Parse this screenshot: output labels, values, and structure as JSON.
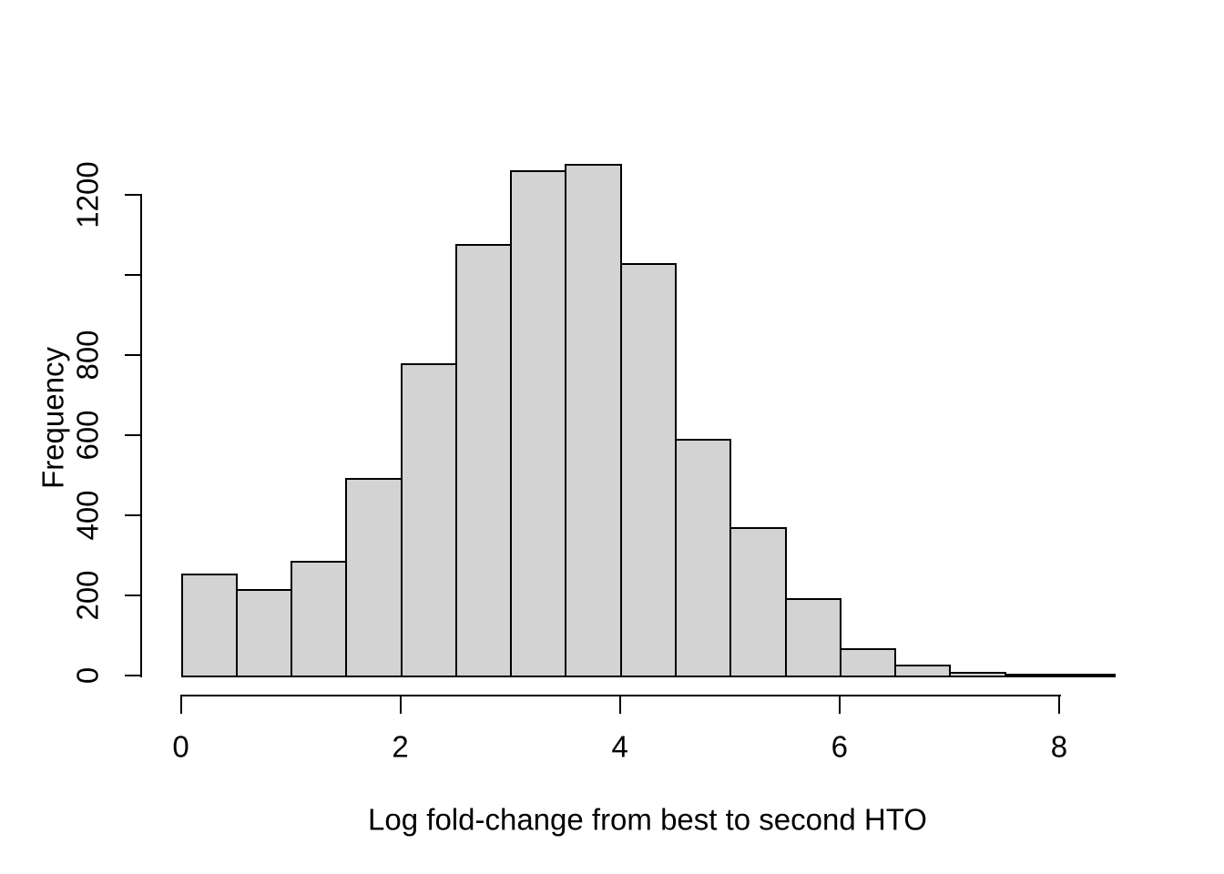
{
  "chart_data": {
    "type": "bar",
    "chart_kind": "histogram",
    "title": "",
    "xlabel": "Log fold-change from best to second HTO",
    "ylabel": "Frequency",
    "bin_start": 0,
    "bin_width": 0.5,
    "bin_edges": [
      0,
      0.5,
      1,
      1.5,
      2,
      2.5,
      3,
      3.5,
      4,
      4.5,
      5,
      5.5,
      6,
      6.5,
      7,
      7.5,
      8,
      8.5
    ],
    "values": [
      253,
      216,
      286,
      492,
      778,
      1076,
      1261,
      1276,
      1029,
      591,
      369,
      193,
      67,
      26,
      9,
      5,
      3
    ],
    "x_ticks": [
      {
        "value": 0,
        "label": "0"
      },
      {
        "value": 2,
        "label": "2"
      },
      {
        "value": 4,
        "label": "4"
      },
      {
        "value": 6,
        "label": "6"
      },
      {
        "value": 8,
        "label": "8"
      }
    ],
    "y_ticks": [
      {
        "value": 0,
        "label": "0"
      },
      {
        "value": 200,
        "label": "200"
      },
      {
        "value": 400,
        "label": "400"
      },
      {
        "value": 600,
        "label": "600"
      },
      {
        "value": 800,
        "label": "800"
      },
      {
        "value": 1000,
        "label": ""
      },
      {
        "value": 1200,
        "label": "1200"
      }
    ],
    "xlim": [
      0,
      8.5
    ],
    "ylim": [
      0,
      1280
    ],
    "grid": false,
    "legend": null,
    "colors": {
      "bar_fill": "#d3d3d3",
      "bar_border": "#000000",
      "axis": "#000000",
      "text": "#000000",
      "background": "#ffffff"
    }
  }
}
